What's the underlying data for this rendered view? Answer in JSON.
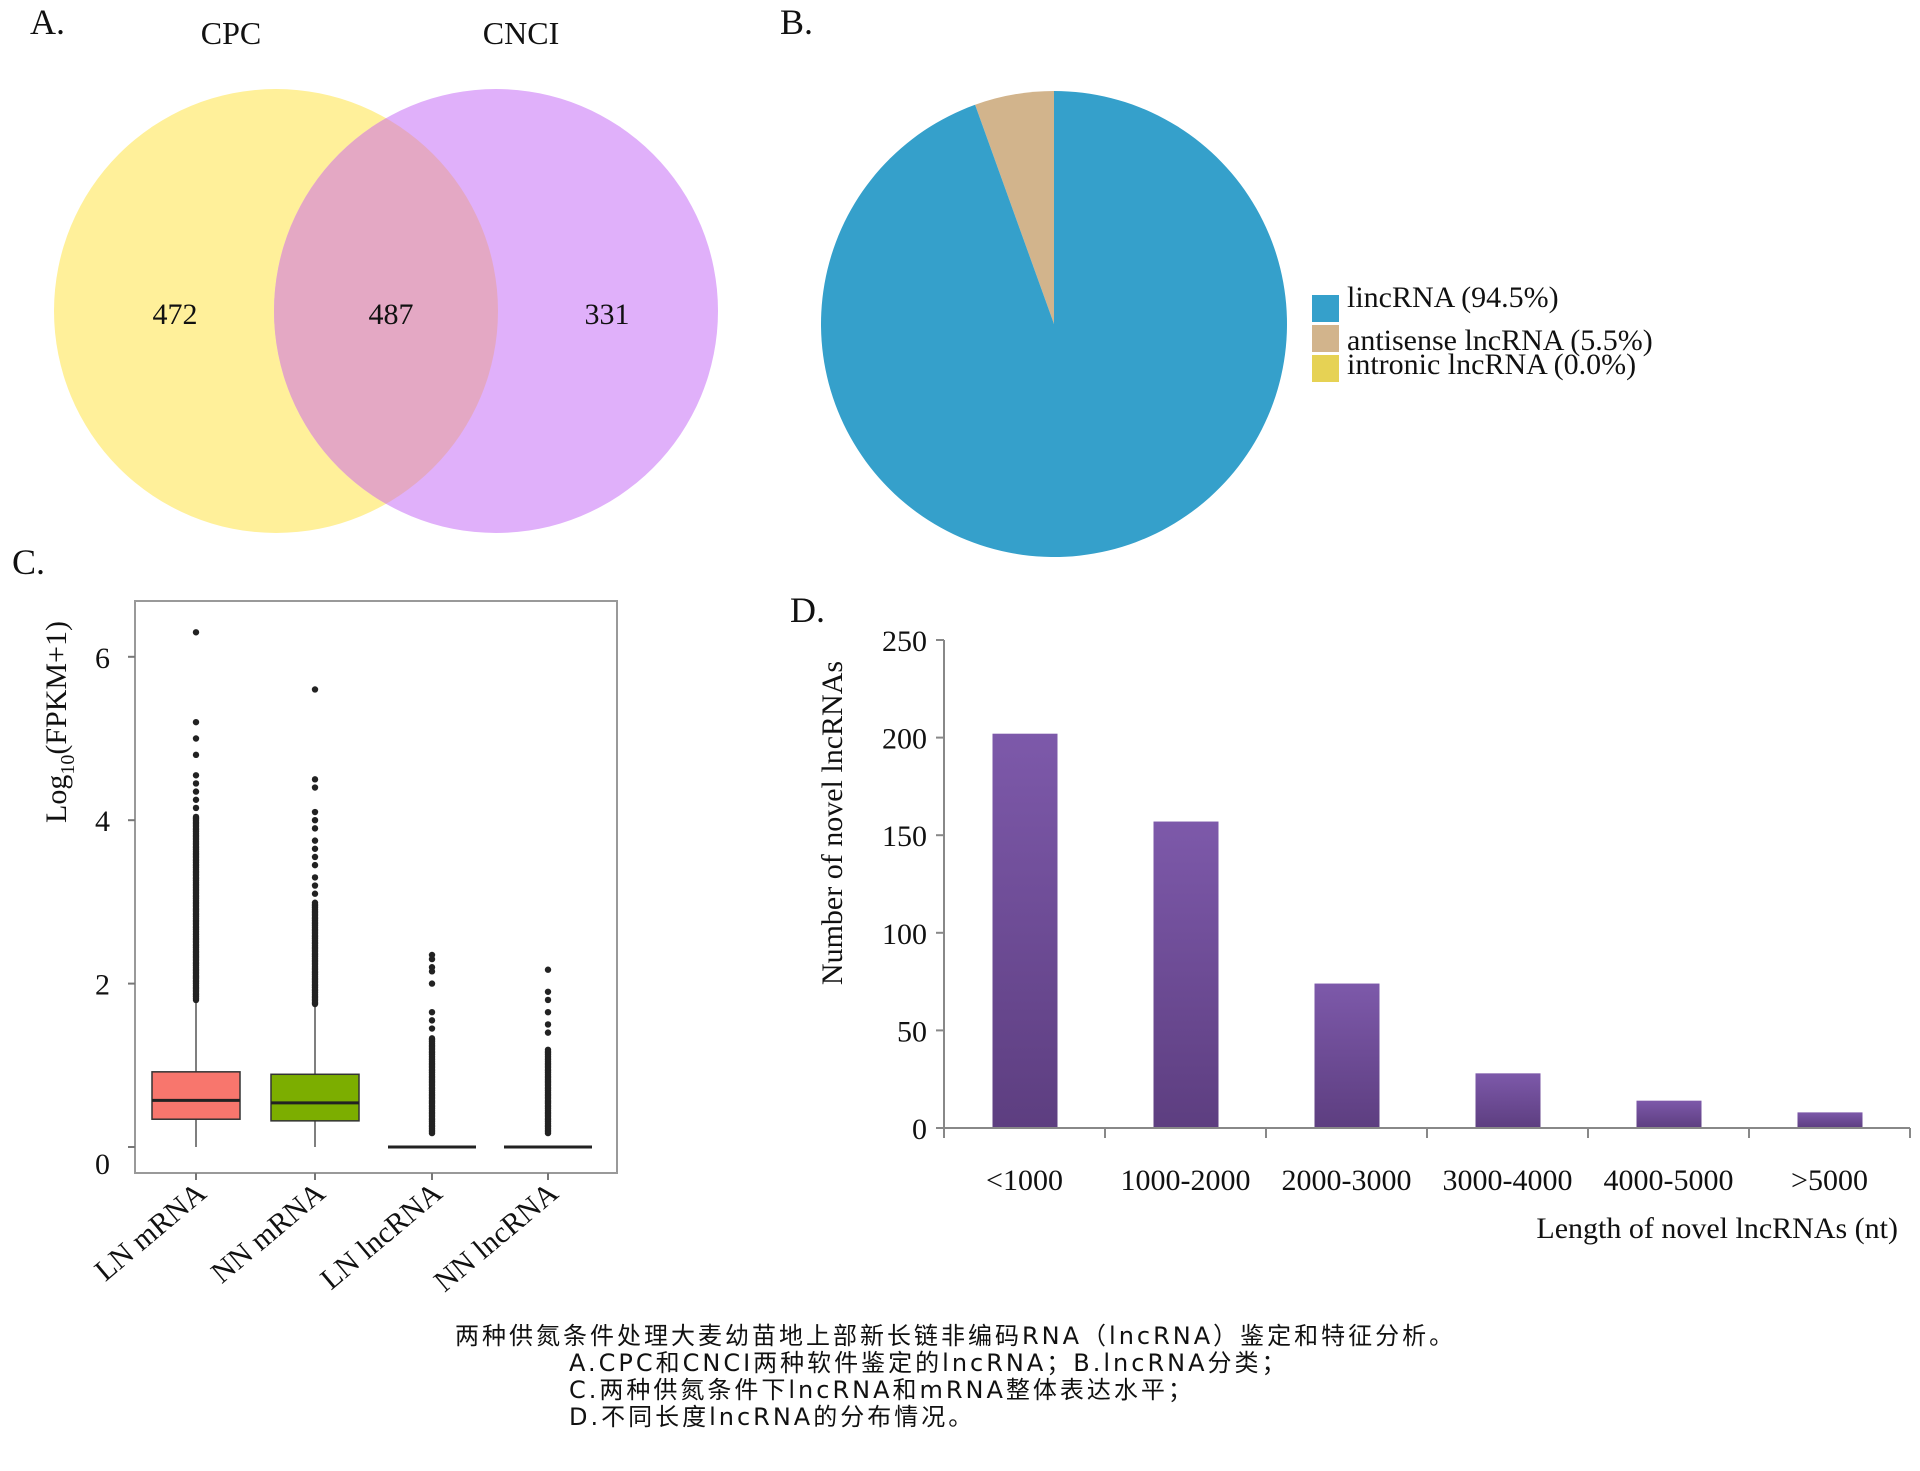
{
  "panel_labels": {
    "a": "A.",
    "b": "B.",
    "c": "C.",
    "d": "D."
  },
  "caption": {
    "line1": "两种供氮条件处理大麦幼苗地上部新长链非编码RNA（lncRNA）鉴定和特征分析。",
    "line2": "A.CPC和CNCI两种软件鉴定的lncRNA；B.lncRNA分类；",
    "line3": "C.两种供氮条件下lncRNA和mRNA整体表达水平；",
    "line4": "D.不同长度lncRNA的分布情况。"
  },
  "chart_data": [
    {
      "type": "venn",
      "sets": [
        {
          "name": "CPC",
          "only": "472",
          "color": "#fff09a"
        },
        {
          "name": "CNCI",
          "only": "331",
          "color": "#e0b0fa"
        }
      ],
      "intersection": "487",
      "overlap_color": "#e4a8c4"
    },
    {
      "type": "pie",
      "slices": [
        {
          "label": "lincRNA (94.5%)",
          "value": 94.5,
          "color": "#35a0cb"
        },
        {
          "label": "antisense lncRNA (5.5%)",
          "value": 5.5,
          "color": "#d2b48c"
        },
        {
          "label": "intronic lncRNA (0.0%)",
          "value": 0.0,
          "color": "#e6d254"
        }
      ],
      "legend": "right"
    },
    {
      "type": "box",
      "ylabel_main": "Log",
      "ylabel_sub": "10",
      "ylabel_rest": "(FPKM+1)",
      "yticks": [
        "0",
        "2",
        "4",
        "6"
      ],
      "ylim": [
        0,
        6.6
      ],
      "categories": [
        "LN mRNA",
        "NN mRNA",
        "LN lncRNA",
        "NN lncRNA"
      ],
      "boxes": [
        {
          "min": 0,
          "q1": 0.34,
          "median": 0.57,
          "q3": 0.92,
          "max": 1.78,
          "color": "#f8766d",
          "outlier_dense": [
            1.8,
            4.05
          ],
          "outliers": [
            4.15,
            4.25,
            4.35,
            4.45,
            4.55,
            4.8,
            5.0,
            5.2,
            6.3
          ]
        },
        {
          "min": 0,
          "q1": 0.32,
          "median": 0.54,
          "q3": 0.89,
          "max": 1.73,
          "color": "#7cae00",
          "outlier_dense": [
            1.75,
            3.0
          ],
          "outliers": [
            3.1,
            3.2,
            3.3,
            3.45,
            3.55,
            3.65,
            3.75,
            3.9,
            4.0,
            4.1,
            4.4,
            4.5,
            5.6
          ]
        },
        {
          "min": 0,
          "q1": 0,
          "median": 0,
          "q3": 0,
          "max": 0,
          "color": "#f8766d",
          "outlier_dense": [
            0.17,
            1.35
          ],
          "outliers": [
            1.45,
            1.55,
            1.65,
            2.0,
            2.15,
            2.2,
            2.3,
            2.35
          ]
        },
        {
          "min": 0,
          "q1": 0,
          "median": 0,
          "q3": 0,
          "max": 0,
          "color": "#7cae00",
          "outlier_dense": [
            0.17,
            1.2
          ],
          "outliers": [
            1.4,
            1.5,
            1.65,
            1.8,
            1.9,
            2.17
          ]
        }
      ]
    },
    {
      "type": "bar",
      "categories": [
        "<1000",
        "1000-2000",
        "2000-3000",
        "3000-4000",
        "4000-5000",
        ">5000"
      ],
      "values": [
        202,
        157,
        74,
        28,
        14,
        8
      ],
      "xlabel": "Length of novel lncRNAs (nt)",
      "ylabel": "Number of novel lncRNAs",
      "yticks": [
        "0",
        "50",
        "100",
        "150",
        "200",
        "250"
      ],
      "ylim": [
        0,
        250
      ],
      "color": "#6e4c98"
    }
  ]
}
